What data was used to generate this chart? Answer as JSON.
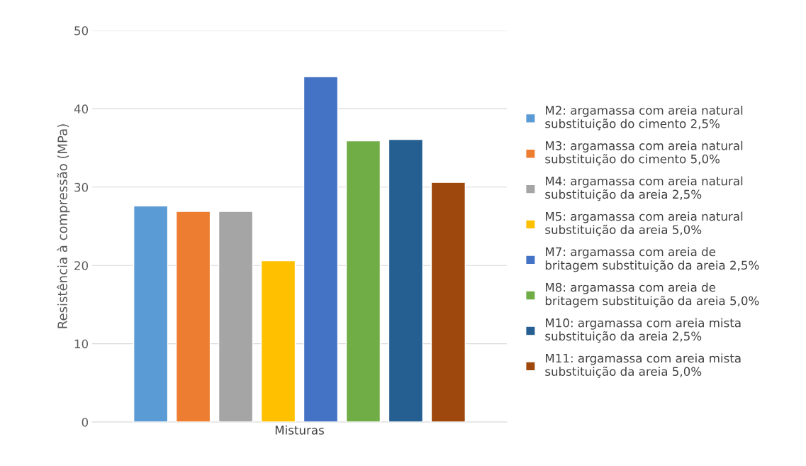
{
  "chart_data": {
    "type": "bar",
    "ylabel": "Resistência à compressão (MPa)",
    "categories": [
      "Misturas"
    ],
    "series": [
      {
        "name": "M2: argamassa com areia natural substituição do cimento 2,5%",
        "color": "#5b9bd5",
        "values": [
          27.6
        ]
      },
      {
        "name": "M3: argamassa com areia natural substituição do cimento 5,0%",
        "color": "#ed7d31",
        "values": [
          26.9
        ]
      },
      {
        "name": "M4: argamassa com areia natural substituição da areia 2,5%",
        "color": "#a5a5a5",
        "values": [
          26.9
        ]
      },
      {
        "name": "M5: argamassa com areia natural substituição da areia 5,0%",
        "color": "#ffc000",
        "values": [
          20.6
        ]
      },
      {
        "name": "M7: argamassa com areia de britagem substituição da areia 2,5%",
        "color": "#4472c4",
        "values": [
          44.1
        ]
      },
      {
        "name": "M8: argamassa com areia de britagem substituição da areia 5,0%",
        "color": "#70ad47",
        "values": [
          35.9
        ]
      },
      {
        "name": "M10: argamassa com areia mista substituição da areia 2,5%",
        "color": "#255e91",
        "values": [
          36.1
        ]
      },
      {
        "name": "M11: argamassa com areia mista substituição da areia 5,0%",
        "color": "#9e480e",
        "values": [
          30.6
        ]
      }
    ],
    "ylim": [
      0,
      50
    ],
    "yticks": [
      0,
      10,
      20,
      30,
      40,
      50
    ],
    "grid": "y",
    "legend": "right"
  }
}
